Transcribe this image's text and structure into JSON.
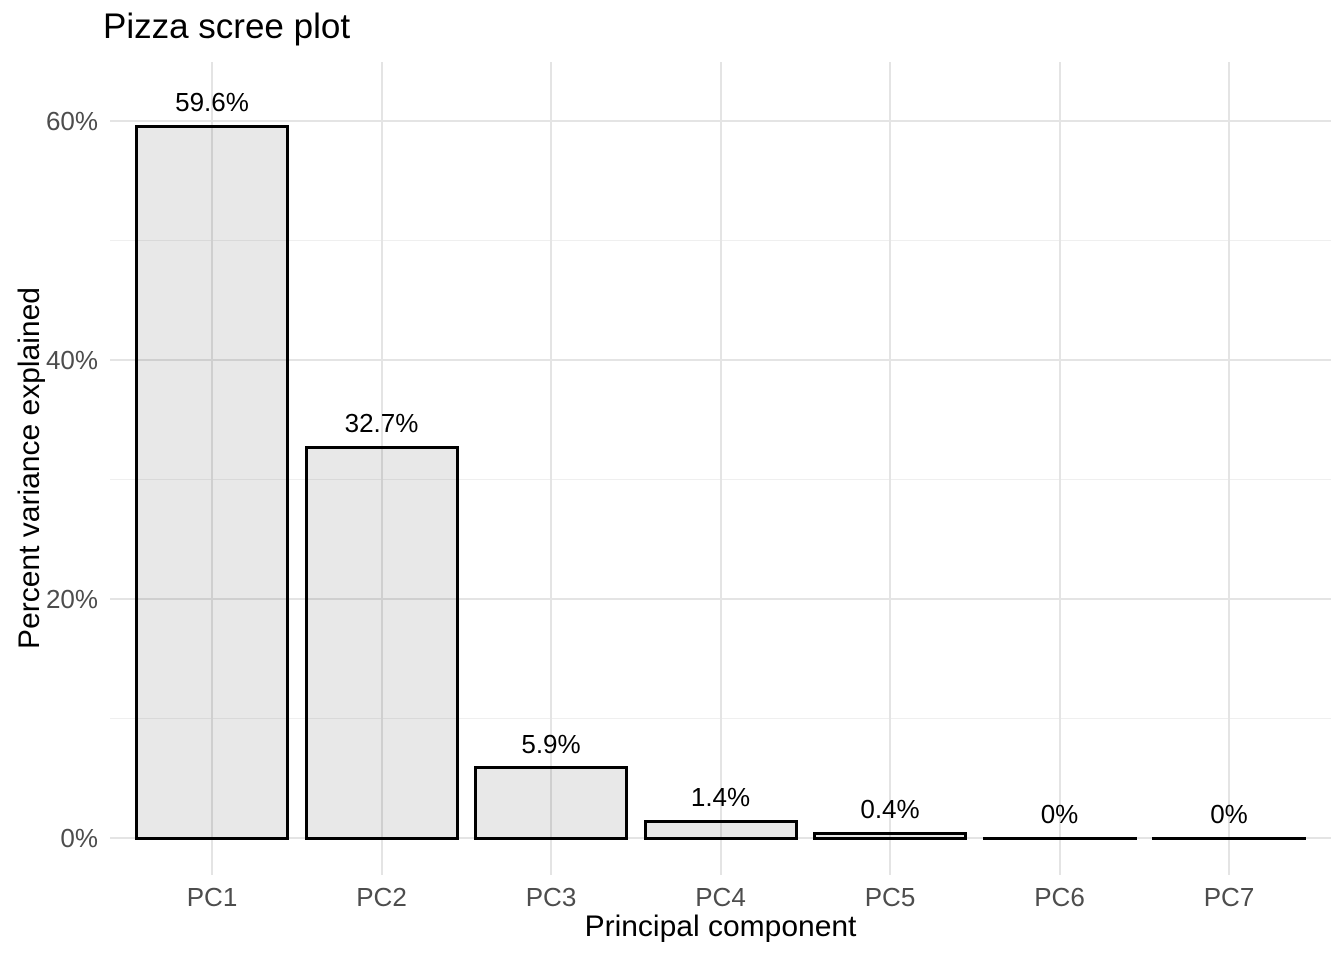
{
  "chart_data": {
    "type": "bar",
    "title": "Pizza scree plot",
    "xlabel": "Principal component",
    "ylabel": "Percent variance explained",
    "categories": [
      "PC1",
      "PC2",
      "PC3",
      "PC4",
      "PC5",
      "PC6",
      "PC7"
    ],
    "values": [
      59.6,
      32.7,
      5.9,
      1.4,
      0.4,
      0,
      0
    ],
    "bar_labels": [
      "59.6%",
      "32.7%",
      "5.9%",
      "1.4%",
      "0.4%",
      "0%",
      "0%"
    ],
    "y_axis": {
      "tick_values": [
        0,
        20,
        40,
        60
      ],
      "tick_labels": [
        "0%",
        "20%",
        "40%",
        "60%"
      ],
      "minor_tick_values": [
        10,
        30,
        50
      ],
      "range": [
        0,
        65
      ]
    },
    "grid": {
      "horizontal_major": true,
      "horizontal_minor": true,
      "vertical_at_categories": true
    },
    "legend": null,
    "colors": {
      "background": "#FFFFFF",
      "bar_fill": "#E8E8E8",
      "bar_border": "#000000",
      "grid_major": "#E4E4E4",
      "grid_minor": "#EFEFEF",
      "tick_text": "#4D4D4D",
      "title_text": "#000000"
    }
  }
}
